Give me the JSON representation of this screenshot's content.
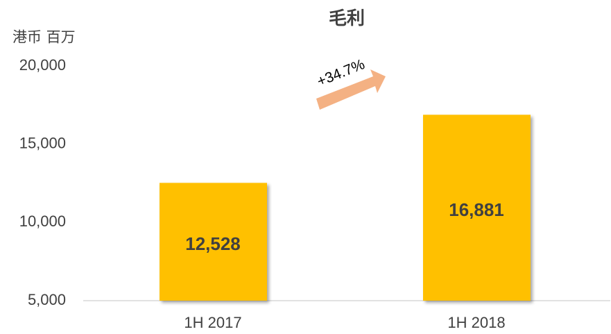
{
  "chart_data": {
    "type": "bar",
    "title": "毛利",
    "y_label": "港币 百万",
    "categories": [
      "1H 2017",
      "1H 2018"
    ],
    "values": [
      12528,
      16881
    ],
    "value_labels": [
      "12,528",
      "16,881"
    ],
    "color": "#ffc000",
    "ylim": [
      5000,
      20000
    ],
    "yticks": [
      {
        "value": 5000,
        "label": "5,000"
      },
      {
        "value": 10000,
        "label": "10,000"
      },
      {
        "value": 15000,
        "label": "15,000"
      },
      {
        "value": 20000,
        "label": "20,000"
      }
    ],
    "grid": false,
    "annotation": "+34.7%"
  }
}
